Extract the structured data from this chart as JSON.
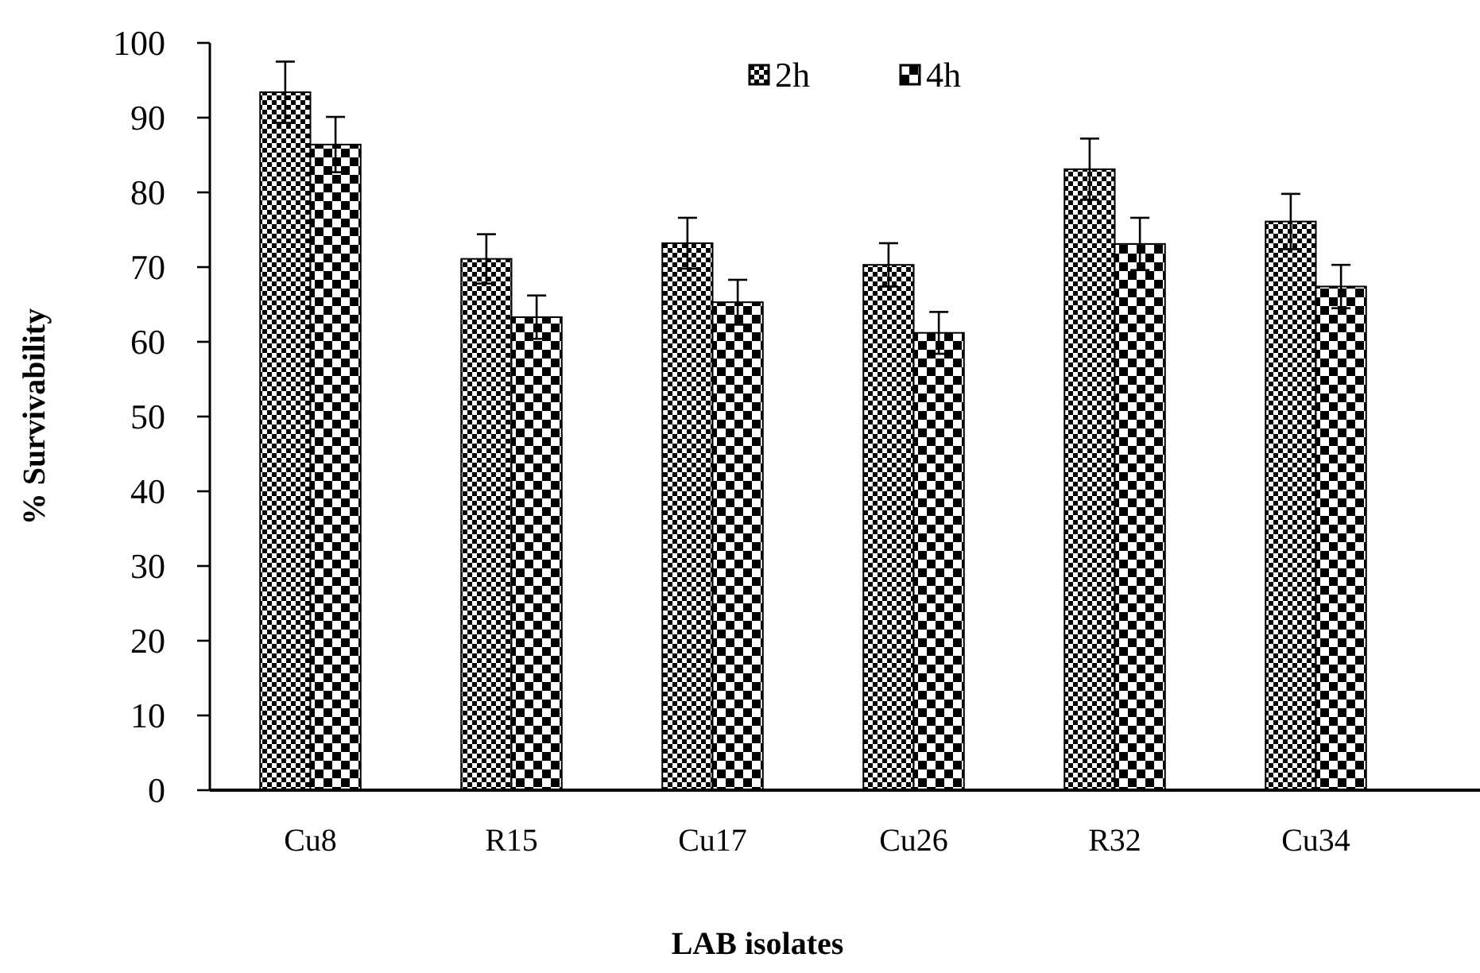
{
  "chart_data": {
    "type": "bar",
    "xlabel": "LAB isolates",
    "ylabel": "% Survivability",
    "categories": [
      "Cu8",
      "R15",
      "Cu17",
      "Cu26",
      "R32",
      "Cu34"
    ],
    "series": [
      {
        "name": "2h",
        "color": "#000000",
        "values": [
          93.4,
          71.1,
          73.2,
          70.3,
          83.1,
          76.1
        ],
        "errors": [
          4.1,
          3.3,
          3.4,
          2.9,
          4.1,
          3.7
        ]
      },
      {
        "name": "4h",
        "color": "#000000",
        "values": [
          86.4,
          63.3,
          65.3,
          61.2,
          73.1,
          67.4
        ],
        "errors": [
          3.7,
          2.9,
          3.0,
          2.8,
          3.5,
          2.9
        ]
      }
    ],
    "ylim": [
      0,
      100
    ],
    "yticks": [
      0,
      10,
      20,
      30,
      40,
      50,
      60,
      70,
      80,
      90,
      100
    ],
    "grid": false,
    "legend": "top"
  }
}
